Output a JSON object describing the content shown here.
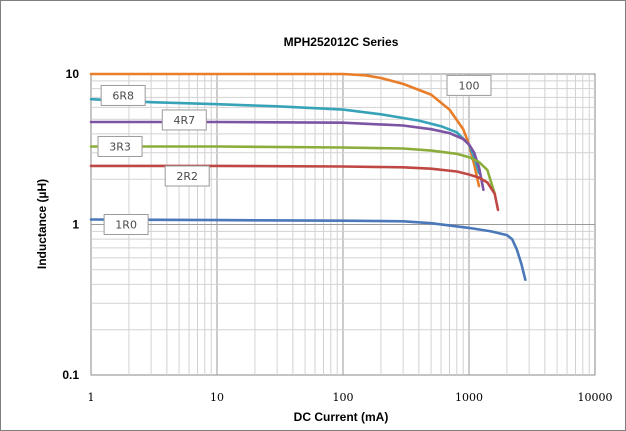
{
  "chart_data": {
    "type": "line",
    "title": "MPH252012C Series",
    "xlabel": "DC  Current (mA)",
    "ylabel": "Inductance (µH)",
    "x_scale": "log",
    "y_scale": "log",
    "xlim": [
      1,
      10000
    ],
    "ylim": [
      0.1,
      10
    ],
    "x_ticks": [
      "1",
      "10",
      "100",
      "1000",
      "10000"
    ],
    "y_ticks": [
      "10",
      "1",
      "0.1"
    ],
    "grid": true,
    "colors": {
      "100": "#e87d2a",
      "6R8": "#37a3b8",
      "4R7": "#7b55a3",
      "3R3": "#8cad3c",
      "2R2": "#bf4845",
      "1R0": "#4a78b8"
    },
    "series": [
      {
        "name": "100",
        "x": [
          1,
          10,
          50,
          100,
          150,
          200,
          300,
          500,
          700,
          900,
          1000,
          1100,
          1200
        ],
        "y": [
          10,
          10,
          10,
          10,
          9.8,
          9.4,
          8.6,
          7.3,
          5.8,
          4.3,
          3.4,
          2.5,
          1.8
        ]
      },
      {
        "name": "6R8",
        "x": [
          1,
          3,
          10,
          30,
          100,
          200,
          400,
          600,
          800,
          1000,
          1100,
          1200
        ],
        "y": [
          6.8,
          6.5,
          6.3,
          6.1,
          5.8,
          5.4,
          4.9,
          4.5,
          4.1,
          3.4,
          2.8,
          2.2
        ]
      },
      {
        "name": "4R7",
        "x": [
          1,
          10,
          100,
          300,
          500,
          700,
          900,
          1000,
          1100,
          1200,
          1300
        ],
        "y": [
          4.8,
          4.8,
          4.75,
          4.55,
          4.3,
          4.05,
          3.7,
          3.4,
          3.0,
          2.4,
          1.7
        ]
      },
      {
        "name": "3R3",
        "x": [
          1,
          10,
          100,
          300,
          500,
          800,
          1000,
          1200,
          1400,
          1500,
          1600
        ],
        "y": [
          3.3,
          3.3,
          3.25,
          3.2,
          3.1,
          2.95,
          2.8,
          2.6,
          2.3,
          1.9,
          1.6
        ]
      },
      {
        "name": "2R2",
        "x": [
          1,
          10,
          100,
          300,
          500,
          800,
          1000,
          1200,
          1400,
          1600,
          1700
        ],
        "y": [
          2.45,
          2.45,
          2.43,
          2.4,
          2.35,
          2.25,
          2.15,
          2.05,
          1.9,
          1.6,
          1.25
        ]
      },
      {
        "name": "1R0",
        "x": [
          1,
          10,
          100,
          300,
          500,
          1000,
          1500,
          2000,
          2200,
          2400,
          2600,
          2800
        ],
        "y": [
          1.08,
          1.07,
          1.06,
          1.05,
          1.02,
          0.95,
          0.9,
          0.85,
          0.8,
          0.68,
          0.55,
          0.43
        ]
      }
    ]
  }
}
